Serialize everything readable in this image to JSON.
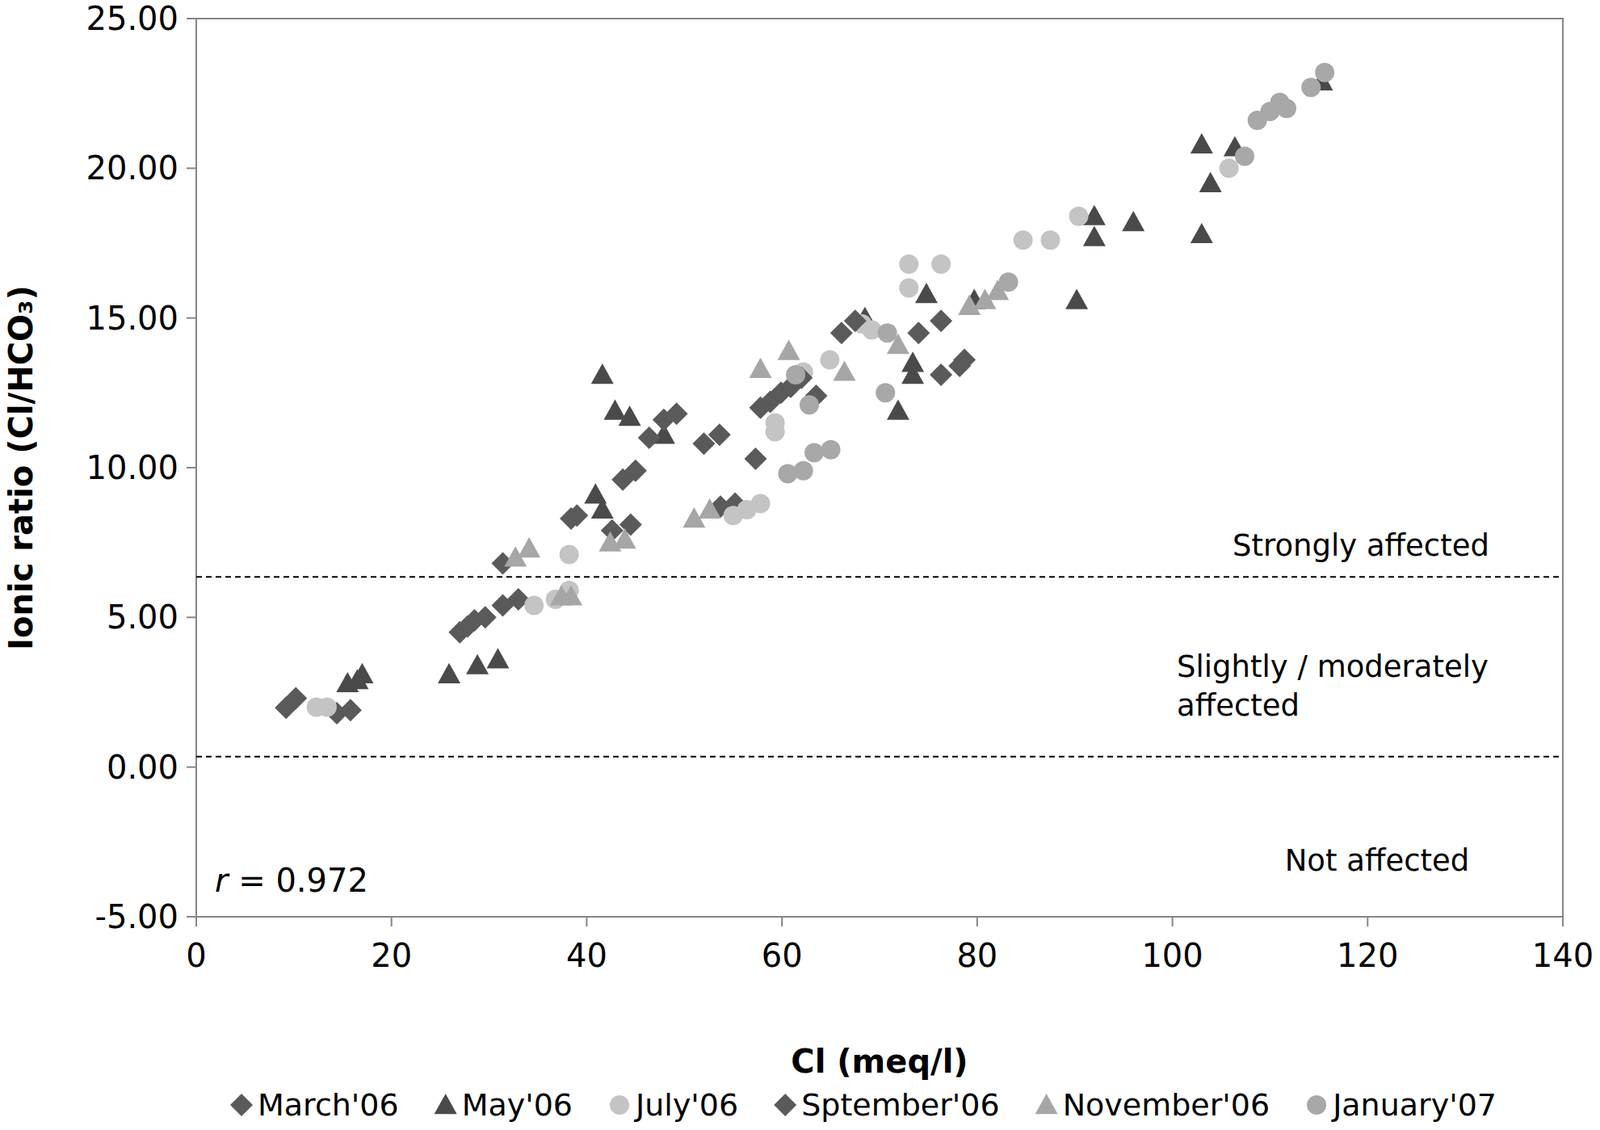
{
  "chart_data": {
    "type": "scatter",
    "xlabel": "Cl (meq/l)",
    "ylabel": "Ionic ratio (Cl/HCO₃)",
    "xlim": [
      0,
      140
    ],
    "ylim": [
      -5,
      25
    ],
    "xticks": [
      0,
      20,
      40,
      60,
      80,
      100,
      120,
      140
    ],
    "yticks": [
      {
        "value": -5,
        "label": "-5.00"
      },
      {
        "value": 0,
        "label": "0.00"
      },
      {
        "value": 5,
        "label": "5.00"
      },
      {
        "value": 10,
        "label": "10.00"
      },
      {
        "value": 15,
        "label": "15.00"
      },
      {
        "value": 20,
        "label": "20.00"
      },
      {
        "value": 25,
        "label": "25.00"
      }
    ],
    "grid": false,
    "legend": "bottom",
    "reference_lines": [
      {
        "value": 6.35,
        "line_style": "dashed"
      },
      {
        "value": 0.35,
        "line_style": "dashed"
      }
    ],
    "annotations": [
      {
        "lines": [
          "Strongly affected"
        ]
      },
      {
        "lines": [
          "Slightly / moderately",
          "affected"
        ]
      },
      {
        "lines": [
          "Not affected"
        ]
      }
    ],
    "correlation_text": [
      "r",
      " = 0.972"
    ],
    "series": [
      {
        "name": "March'06",
        "color": "#5a5a5a",
        "marker": "diamond",
        "x": [
          9.2,
          10.2,
          14.4,
          15.8,
          27,
          27.8,
          28.5,
          29.6,
          31.4,
          33,
          53.7,
          55.2,
          57.3,
          76.3,
          78.2,
          78.7
        ],
        "values": [
          1.98,
          2.3,
          1.8,
          1.9,
          4.5,
          4.7,
          4.9,
          5.0,
          5.4,
          5.6,
          8.7,
          8.8,
          10.3,
          13.1,
          13.4,
          13.6
        ]
      },
      {
        "name": "May'06",
        "color": "#4a4a4a",
        "marker": "triangle",
        "x": [
          15.5,
          16.5,
          17,
          25.9,
          28.8,
          30.9,
          40.9,
          41.6,
          41.6,
          42.9,
          44.4,
          47.9,
          68.5,
          71.9,
          73.4,
          73.4,
          74.8,
          79.7,
          90.2,
          92,
          92,
          96,
          103,
          103,
          103.9,
          106.4,
          115.3
        ],
        "values": [
          2.8,
          2.9,
          3.1,
          3.1,
          3.4,
          3.6,
          9.1,
          8.6,
          13.1,
          11.9,
          11.7,
          11.1,
          15.0,
          11.9,
          13.1,
          13.5,
          15.8,
          15.6,
          15.6,
          18.4,
          17.7,
          18.2,
          20.8,
          17.8,
          19.5,
          20.7,
          22.9
        ]
      },
      {
        "name": "July'06",
        "color": "#c4c4c4",
        "marker": "circle",
        "x": [
          12.3,
          13.4,
          34.6,
          36.8,
          38.2,
          38.2,
          55,
          56.4,
          57.8,
          59.3,
          59.3,
          62.2,
          64.9,
          68.2,
          69.2,
          73,
          73,
          76.3,
          84.7,
          87.5,
          90.4,
          105.8
        ],
        "values": [
          2.0,
          2.0,
          5.4,
          5.6,
          5.9,
          7.1,
          8.4,
          8.6,
          8.8,
          11.2,
          11.5,
          13.2,
          13.6,
          14.8,
          14.6,
          16.0,
          16.8,
          16.8,
          17.6,
          17.6,
          18.4,
          20.0
        ]
      },
      {
        "name": "Sptember'06",
        "color": "#5a5a5a",
        "marker": "diamond",
        "x": [
          31.4,
          38.4,
          39,
          42.6,
          43.7,
          45,
          44.5,
          46.4,
          47.9,
          49.2,
          52,
          53.6,
          57.8,
          58.8,
          59.9,
          60.9,
          62,
          63.5,
          66.1,
          67.5,
          74,
          76.3
        ],
        "values": [
          6.8,
          8.3,
          8.4,
          7.9,
          9.6,
          9.9,
          8.1,
          11.0,
          11.6,
          11.8,
          10.8,
          11.1,
          12.0,
          12.2,
          12.5,
          12.7,
          13.0,
          12.4,
          14.5,
          14.9,
          14.5,
          14.9
        ]
      },
      {
        "name": "November'06",
        "color": "#a6a6a6",
        "marker": "triangle",
        "x": [
          32.7,
          34.1,
          37.4,
          38.4,
          42.4,
          43.9,
          51,
          52.6,
          57.8,
          60.7,
          66.4,
          71.9,
          79.2,
          80.8,
          82.1
        ],
        "values": [
          7.0,
          7.3,
          5.7,
          5.7,
          7.5,
          7.6,
          8.3,
          8.6,
          13.3,
          13.9,
          13.2,
          14.1,
          15.4,
          15.6,
          15.9
        ]
      },
      {
        "name": "January'07",
        "color": "#a8a8a8",
        "marker": "circle",
        "x": [
          60.6,
          62.2,
          63.3,
          65,
          70.6,
          70.8,
          61.4,
          62.8,
          83.2,
          107.4,
          108.7,
          110,
          111,
          111.7,
          114.2,
          115.6
        ],
        "values": [
          9.8,
          9.9,
          10.5,
          10.6,
          12.5,
          14.5,
          13.1,
          12.1,
          16.2,
          20.4,
          21.6,
          21.9,
          22.2,
          22.0,
          22.7,
          23.2
        ]
      }
    ]
  }
}
